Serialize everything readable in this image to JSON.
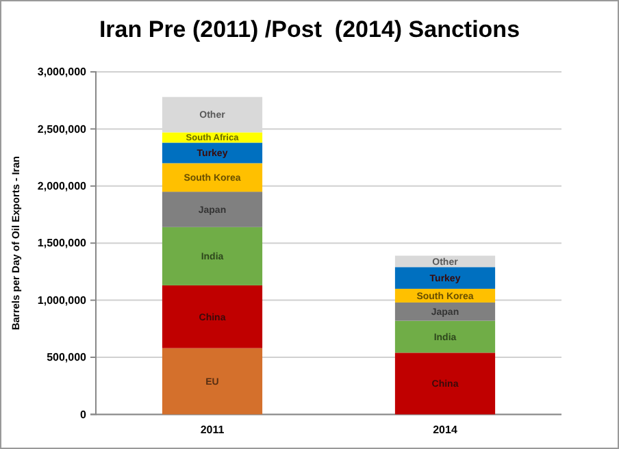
{
  "chart_data": {
    "type": "bar",
    "stacked": true,
    "title": "Iran Pre (2011) /Post  (2014) Sanctions",
    "ylabel": "Barrels per Day of Oil Exports - Iran",
    "categories": [
      "2011",
      "2014"
    ],
    "series": [
      {
        "name": "EU",
        "color": "#d4702c",
        "values": [
          580000,
          null
        ]
      },
      {
        "name": "China",
        "color": "#c00000",
        "values": [
          550000,
          540000
        ]
      },
      {
        "name": "India",
        "color": "#70ad47",
        "values": [
          510000,
          280000
        ]
      },
      {
        "name": "Japan",
        "color": "#808080",
        "values": [
          310000,
          160000
        ]
      },
      {
        "name": "South Korea",
        "color": "#ffc000",
        "values": [
          250000,
          120000
        ]
      },
      {
        "name": "Turkey",
        "color": "#0070c0",
        "values": [
          180000,
          190000
        ]
      },
      {
        "name": "South Africa",
        "color": "#ffff00",
        "values": [
          90000,
          null
        ]
      },
      {
        "name": "Other",
        "color": "#d9d9d9",
        "values": [
          310000,
          100000
        ]
      }
    ],
    "ylim": [
      0,
      3000000
    ],
    "yticks": [
      0,
      {
        "value": 500000,
        "label": "500,000"
      },
      {
        "value": 1000000,
        "label": "1,000,000"
      },
      {
        "value": 1500000,
        "label": "1,500,000"
      },
      {
        "value": 2000000,
        "label": "2,000,000"
      },
      {
        "value": 2500000,
        "label": "2,500,000"
      },
      {
        "value": 3000000,
        "label": "3,000,000"
      }
    ],
    "grid": "y",
    "legend": false
  }
}
